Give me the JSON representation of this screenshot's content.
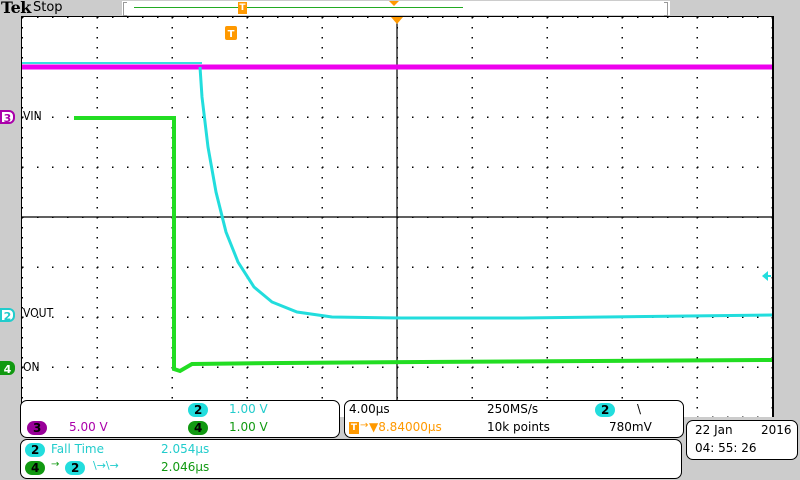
{
  "header": {
    "brand": "Tek",
    "status": "Stop"
  },
  "colors": {
    "ch2": "#22dddd",
    "ch3": "#ee00ee",
    "ch4": "#22dd22",
    "trigger": "#ff9900",
    "ch3_text": "#aa00aa",
    "ch4_text": "#119911",
    "ch2_text": "#22cccc"
  },
  "channels": [
    {
      "id": "3",
      "label": "VIN",
      "color": "#aa00aa"
    },
    {
      "id": "2",
      "label": "VOUT",
      "color": "#22cccc"
    },
    {
      "id": "4",
      "label": "ON",
      "color": "#119911"
    }
  ],
  "vertical_panel": {
    "ch2": {
      "num": "2",
      "scale": "1.00 V"
    },
    "ch3": {
      "num": "3",
      "scale": "5.00 V"
    },
    "ch4": {
      "num": "4",
      "scale": "1.00 V"
    }
  },
  "horizontal_panel": {
    "timebase": "4.00µs",
    "sample_rate": "250MS/s",
    "trigger_source": "2",
    "trigger_slope": "\\",
    "trigger_delay": "▼8.84000µs",
    "record_length": "10k points",
    "trigger_level": "780mV"
  },
  "measurements": [
    {
      "source": "2",
      "name": "Fall Time",
      "value": "2.054µs"
    },
    {
      "source": "4",
      "target": "2",
      "name": "\\→\\→",
      "value": "2.046µs"
    }
  ],
  "datetime": {
    "date_day": "22 Jan",
    "date_year": "2016",
    "time": "04: 55: 26"
  }
}
